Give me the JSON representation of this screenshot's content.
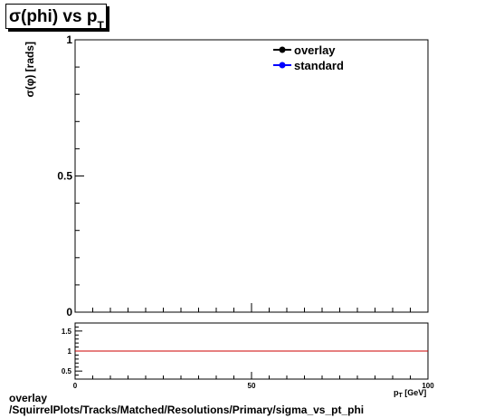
{
  "title": {
    "main": "σ(phi) vs p",
    "sub": "T"
  },
  "footer": {
    "line1": "overlay",
    "line2": "/SquirrelPlots/Tracks/Matched/Resolutions/Primary/sigma_vs_pt_phi"
  },
  "chart_data": [
    {
      "type": "line",
      "ylabel": "σ(φ) [rads]",
      "xlabel": "p",
      "xlim": [
        0,
        100
      ],
      "ylim": [
        0,
        1
      ],
      "ytick_labels": [
        "0",
        "0.5",
        "1"
      ],
      "ytick_values": [
        0,
        0.5,
        1
      ],
      "legend": [
        {
          "name": "overlay",
          "color": "#000000"
        },
        {
          "name": "standard",
          "color": "#0000ff"
        }
      ],
      "legend_position": "top-right",
      "series": [
        {
          "name": "overlay",
          "x": [],
          "y": []
        },
        {
          "name": "standard",
          "x": [],
          "y": []
        }
      ],
      "grid": false
    },
    {
      "type": "line",
      "xlabel": "p_T [GeV]",
      "xlim": [
        0,
        100
      ],
      "ylim": [
        0.3,
        1.7
      ],
      "xtick_labels": [
        "0",
        "50",
        "100"
      ],
      "xtick_values": [
        0,
        50,
        100
      ],
      "ytick_labels": [
        "0.5",
        "1",
        "1.5"
      ],
      "ytick_values": [
        0.5,
        1,
        1.5
      ],
      "reference_line": {
        "y": 1,
        "color": "#cc0000"
      },
      "xlabel_parts": {
        "main": "p",
        "sub": "T",
        "unit": " [GeV]"
      },
      "grid": false
    }
  ]
}
